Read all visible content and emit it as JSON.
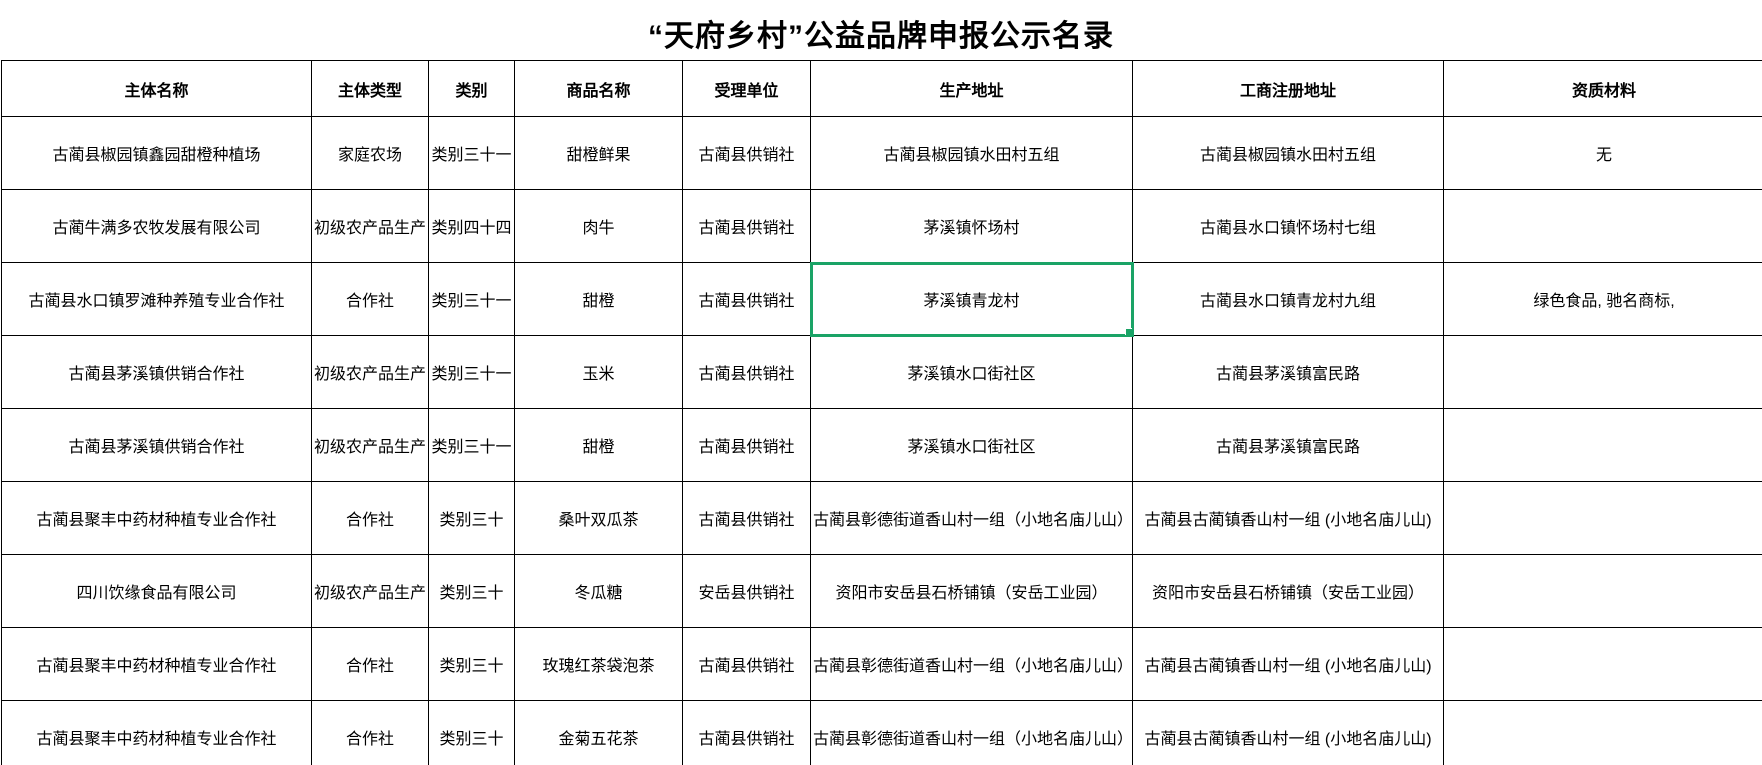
{
  "title": "“天府乡村”公益品牌申报公示名录",
  "table": {
    "headers": [
      "主体名称",
      "主体类型",
      "类别",
      "商品名称",
      "受理单位",
      "生产地址",
      "工商注册地址",
      "资质材料"
    ],
    "rows": [
      [
        "古蔺县椒园镇鑫园甜橙种植场",
        "家庭农场",
        "类别三十一",
        "甜橙鲜果",
        "古蔺县供销社",
        "古蔺县椒园镇水田村五组",
        "古蔺县椒园镇水田村五组",
        "无"
      ],
      [
        "古蔺牛满多农牧发展有限公司",
        "初级农产品生产",
        "类别四十四",
        "肉牛",
        "古蔺县供销社",
        "茅溪镇怀场村",
        "古蔺县水口镇怀场村七组",
        ""
      ],
      [
        "古蔺县水口镇罗滩种养殖专业合作社",
        "合作社",
        "类别三十一",
        "甜橙",
        "古蔺县供销社",
        "茅溪镇青龙村",
        "古蔺县水口镇青龙村九组",
        "绿色食品, 驰名商标,"
      ],
      [
        "古蔺县茅溪镇供销合作社",
        "初级农产品生产",
        "类别三十一",
        "玉米",
        "古蔺县供销社",
        "茅溪镇水口街社区",
        "古蔺县茅溪镇富民路",
        ""
      ],
      [
        "古蔺县茅溪镇供销合作社",
        "初级农产品生产",
        "类别三十一",
        "甜橙",
        "古蔺县供销社",
        "茅溪镇水口街社区",
        "古蔺县茅溪镇富民路",
        ""
      ],
      [
        "古蔺县聚丰中药材种植专业合作社",
        "合作社",
        "类别三十",
        "桑叶双瓜茶",
        "古蔺县供销社",
        "古蔺县彰德街道香山村一组（小地名庙儿山）",
        "古蔺县古蔺镇香山村一组 (小地名庙儿山)",
        ""
      ],
      [
        "四川饮缘食品有限公司",
        "初级农产品生产",
        "类别三十",
        "冬瓜糖",
        "安岳县供销社",
        "资阳市安岳县石桥铺镇（安岳工业园）",
        "资阳市安岳县石桥铺镇（安岳工业园）",
        ""
      ],
      [
        "古蔺县聚丰中药材种植专业合作社",
        "合作社",
        "类别三十",
        "玫瑰红茶袋泡茶",
        "古蔺县供销社",
        "古蔺县彰德街道香山村一组（小地名庙儿山）",
        "古蔺县古蔺镇香山村一组 (小地名庙儿山)",
        ""
      ],
      [
        "古蔺县聚丰中药材种植专业合作社",
        "合作社",
        "类别三十",
        "金菊五花茶",
        "古蔺县供销社",
        "古蔺县彰德街道香山村一组（小地名庙儿山）",
        "古蔺县古蔺镇香山村一组 (小地名庙儿山)",
        ""
      ]
    ],
    "selection": {
      "row": 2,
      "col": 5,
      "color": "#1aa366"
    }
  }
}
